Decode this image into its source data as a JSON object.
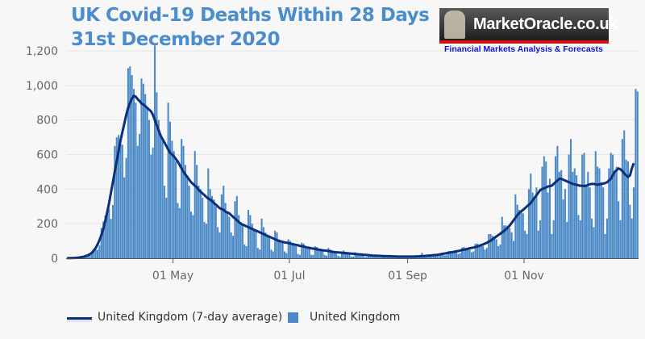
{
  "header": {
    "title_line1": "UK Covid-19 Deaths Within 28 Days",
    "title_line2": "31st December 2020"
  },
  "logo": {
    "name": "MarketOracle.co.uk",
    "tagline": "Financial Markets Analysis & Forecasts"
  },
  "chart_data": {
    "type": "bar",
    "x_range": [
      "2020-03-06",
      "2020-12-30"
    ],
    "x_ticks": [
      {
        "date": "2020-05-01",
        "label": "01 May"
      },
      {
        "date": "2020-07-01",
        "label": "01 Jul"
      },
      {
        "date": "2020-09-01",
        "label": "01 Sep"
      },
      {
        "date": "2020-11-01",
        "label": "01 Nov"
      }
    ],
    "ylim": [
      0,
      1200
    ],
    "y_ticks": [
      "0",
      "200",
      "400",
      "600",
      "800",
      "1,000",
      "1,200"
    ],
    "y_tick_values": [
      0,
      200,
      400,
      600,
      800,
      1000,
      1200
    ],
    "grid": true,
    "legend_position": "bottom",
    "colors": {
      "bars": "#4a89c6",
      "line": "#0b2f7a",
      "title": "#4b8dca"
    },
    "series": [
      {
        "name": "United Kingdom (7-day average)",
        "type": "line",
        "values": [
          1,
          1,
          1,
          2,
          2,
          3,
          4,
          6,
          8,
          10,
          14,
          18,
          24,
          32,
          45,
          60,
          80,
          105,
          135,
          170,
          215,
          265,
          320,
          380,
          440,
          500,
          560,
          620,
          680,
          730,
          780,
          830,
          870,
          900,
          925,
          940,
          935,
          920,
          910,
          895,
          890,
          880,
          870,
          860,
          850,
          830,
          800,
          770,
          740,
          710,
          690,
          670,
          650,
          630,
          610,
          600,
          590,
          575,
          560,
          540,
          520,
          500,
          485,
          470,
          455,
          440,
          430,
          420,
          410,
          395,
          385,
          375,
          365,
          355,
          345,
          340,
          330,
          320,
          310,
          300,
          290,
          285,
          280,
          270,
          265,
          260,
          250,
          240,
          230,
          220,
          210,
          200,
          195,
          190,
          185,
          180,
          175,
          170,
          165,
          160,
          155,
          150,
          145,
          140,
          135,
          130,
          125,
          120,
          115,
          110,
          105,
          100,
          98,
          95,
          92,
          90,
          88,
          85,
          82,
          80,
          78,
          75,
          72,
          70,
          68,
          65,
          62,
          60,
          58,
          56,
          54,
          52,
          50,
          48,
          46,
          45,
          44,
          42,
          40,
          38,
          36,
          35,
          34,
          33,
          32,
          31,
          30,
          29,
          28,
          27,
          26,
          25,
          24,
          23,
          22,
          21,
          20,
          19,
          18,
          17,
          16,
          15,
          15,
          14,
          14,
          13,
          13,
          12,
          12,
          12,
          11,
          11,
          11,
          10,
          10,
          10,
          10,
          10,
          10,
          10,
          10,
          10,
          10,
          11,
          11,
          12,
          12,
          13,
          14,
          15,
          16,
          17,
          18,
          19,
          20,
          22,
          24,
          26,
          28,
          30,
          32,
          34,
          36,
          38,
          40,
          42,
          45,
          48,
          50,
          52,
          55,
          58,
          60,
          62,
          65,
          68,
          72,
          76,
          80,
          85,
          90,
          96,
          102,
          110,
          118,
          126,
          134,
          142,
          150,
          158,
          168,
          178,
          190,
          205,
          220,
          235,
          250,
          262,
          272,
          280,
          290,
          300,
          310,
          320,
          335,
          350,
          365,
          380,
          395,
          400,
          405,
          410,
          415,
          418,
          420,
          430,
          440,
          450,
          460,
          460,
          455,
          450,
          445,
          440,
          435,
          430,
          428,
          425,
          422,
          420,
          420,
          418,
          420,
          425,
          428,
          430,
          430,
          428,
          425,
          428,
          430,
          432,
          435,
          440,
          450,
          460,
          480,
          500,
          510,
          520,
          515,
          505,
          490,
          480,
          470,
          480,
          520,
          550,
          null,
          null
        ]
      },
      {
        "name": "United Kingdom",
        "type": "bar",
        "values": [
          1,
          1,
          1,
          1,
          3,
          4,
          5,
          6,
          7,
          6,
          10,
          23,
          30,
          37,
          45,
          54,
          48,
          74,
          176,
          213,
          247,
          265,
          288,
          228,
          308,
          650,
          700,
          713,
          680,
          657,
          468,
          581,
          1100,
          1110,
          1060,
          980,
          900,
          650,
          720,
          1040,
          1010,
          950,
          870,
          800,
          600,
          640,
          1230,
          960,
          800,
          720,
          680,
          420,
          350,
          900,
          790,
          680,
          620,
          560,
          320,
          290,
          690,
          650,
          540,
          480,
          420,
          270,
          250,
          620,
          540,
          420,
          400,
          350,
          210,
          200,
          520,
          400,
          360,
          340,
          300,
          180,
          150,
          370,
          420,
          320,
          270,
          240,
          150,
          130,
          330,
          360,
          250,
          210,
          200,
          80,
          70,
          280,
          250,
          200,
          170,
          160,
          60,
          50,
          230,
          180,
          150,
          130,
          120,
          50,
          40,
          160,
          150,
          110,
          100,
          90,
          40,
          30,
          110,
          100,
          90,
          75,
          70,
          25,
          20,
          90,
          85,
          70,
          60,
          55,
          20,
          20,
          70,
          65,
          55,
          50,
          45,
          20,
          15,
          60,
          50,
          45,
          40,
          30,
          15,
          10,
          40,
          45,
          35,
          30,
          25,
          10,
          10,
          35,
          30,
          25,
          22,
          20,
          8,
          8,
          25,
          20,
          18,
          15,
          12,
          6,
          6,
          18,
          16,
          14,
          12,
          10,
          5,
          5,
          15,
          14,
          12,
          10,
          9,
          4,
          3,
          14,
          13,
          12,
          10,
          10,
          5,
          6,
          32,
          16,
          15,
          15,
          14,
          10,
          12,
          25,
          24,
          25,
          24,
          22,
          17,
          20,
          42,
          42,
          40,
          38,
          35,
          25,
          30,
          62,
          65,
          60,
          55,
          50,
          35,
          40,
          85,
          85,
          80,
          76,
          70,
          50,
          60,
          140,
          140,
          130,
          120,
          110,
          70,
          80,
          240,
          190,
          190,
          175,
          175,
          150,
          100,
          370,
          310,
          280,
          275,
          260,
          160,
          140,
          400,
          490,
          380,
          350,
          410,
          160,
          220,
          530,
          590,
          560,
          380,
          460,
          140,
          220,
          590,
          650,
          500,
          510,
          340,
          400,
          210,
          600,
          690,
          500,
          520,
          480,
          250,
          220,
          600,
          610,
          420,
          500,
          410,
          230,
          180,
          620,
          530,
          520,
          440,
          410,
          140,
          230,
          520,
          610,
          600,
          500,
          530,
          330,
          220,
          690,
          740,
          570,
          560,
          310,
          230,
          410,
          980,
          965
        ]
      }
    ]
  }
}
